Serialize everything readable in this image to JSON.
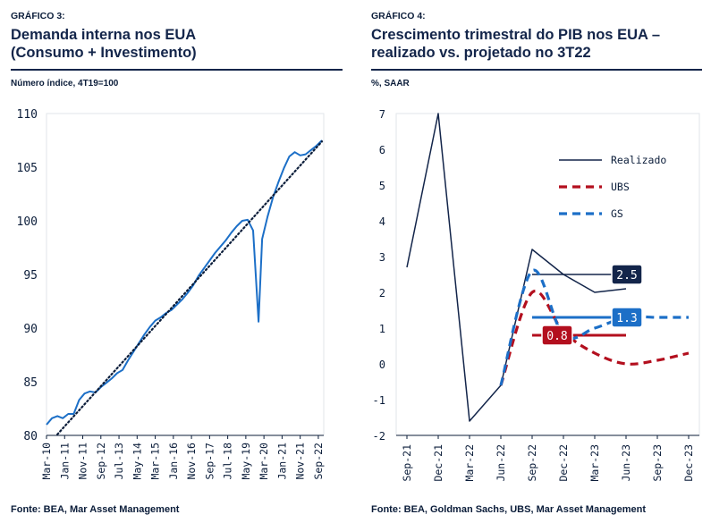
{
  "colors": {
    "navy": "#13254a",
    "blue": "#1c6fc7",
    "red": "#b30f1e",
    "text": "#0b1d3a",
    "grid": "#e1e4ea"
  },
  "panel1": {
    "kicker": "GRÁFICO 3:",
    "title_line1": "Demanda interna nos EUA",
    "title_line2": "(Consumo + Investimento)",
    "unit": "Número índice, 4T19=100",
    "source": "Fonte: BEA, Mar Asset Management"
  },
  "panel2": {
    "kicker": "GRÁFICO 4:",
    "title_line1": "Crescimento trimestral do PIB nos EUA –",
    "title_line2": "realizado vs. projetado no 3T22",
    "unit": "%, SAAR",
    "source": "Fonte: BEA, Goldman Sachs, UBS, Mar Asset Management"
  },
  "chart_data": [
    {
      "type": "line",
      "ylim": [
        80,
        110
      ],
      "yticks": [
        80,
        85,
        90,
        95,
        100,
        105,
        110
      ],
      "xlim": [
        0,
        153
      ],
      "xticks": [
        {
          "label": "Mar-10",
          "i": 0
        },
        {
          "label": "Jan-11",
          "i": 10
        },
        {
          "label": "Nov-11",
          "i": 20
        },
        {
          "label": "Sep-12",
          "i": 30
        },
        {
          "label": "Jul-13",
          "i": 40
        },
        {
          "label": "May-14",
          "i": 50
        },
        {
          "label": "Mar-15",
          "i": 60
        },
        {
          "label": "Jan-16",
          "i": 70
        },
        {
          "label": "Nov-16",
          "i": 80
        },
        {
          "label": "Sep-17",
          "i": 90
        },
        {
          "label": "Jul-18",
          "i": 100
        },
        {
          "label": "May-19",
          "i": 110
        },
        {
          "label": "Mar-20",
          "i": 120
        },
        {
          "label": "Jan-21",
          "i": 130
        },
        {
          "label": "Nov-21",
          "i": 140
        },
        {
          "label": "Sep-22",
          "i": 150
        }
      ],
      "series": [
        {
          "style": "solid",
          "color": "#1c6fc7",
          "points": [
            [
              0,
              81.0
            ],
            [
              3,
              81.6
            ],
            [
              6,
              81.8
            ],
            [
              9,
              81.6
            ],
            [
              12,
              82.0
            ],
            [
              15,
              82.0
            ],
            [
              18,
              83.3
            ],
            [
              21,
              83.9
            ],
            [
              24,
              84.1
            ],
            [
              27,
              84.0
            ],
            [
              30,
              84.5
            ],
            [
              33,
              84.9
            ],
            [
              36,
              85.3
            ],
            [
              39,
              85.8
            ],
            [
              42,
              86.1
            ],
            [
              45,
              87.0
            ],
            [
              48,
              87.8
            ],
            [
              51,
              88.6
            ],
            [
              54,
              89.4
            ],
            [
              57,
              90.1
            ],
            [
              60,
              90.7
            ],
            [
              63,
              91.0
            ],
            [
              66,
              91.4
            ],
            [
              69,
              91.7
            ],
            [
              72,
              92.2
            ],
            [
              75,
              92.7
            ],
            [
              78,
              93.3
            ],
            [
              81,
              94.0
            ],
            [
              84,
              94.9
            ],
            [
              87,
              95.6
            ],
            [
              90,
              96.3
            ],
            [
              93,
              97.0
            ],
            [
              96,
              97.6
            ],
            [
              99,
              98.2
            ],
            [
              102,
              98.9
            ],
            [
              105,
              99.5
            ],
            [
              108,
              100.0
            ],
            [
              111,
              100.1
            ],
            [
              114,
              99.1
            ],
            [
              117,
              90.6
            ],
            [
              119,
              98.3
            ],
            [
              122,
              100.4
            ],
            [
              125,
              102.2
            ],
            [
              128,
              103.6
            ],
            [
              131,
              104.9
            ],
            [
              134,
              106.0
            ],
            [
              137,
              106.4
            ],
            [
              140,
              106.1
            ],
            [
              143,
              106.2
            ],
            [
              146,
              106.6
            ],
            [
              149,
              107.0
            ],
            [
              152,
              107.5
            ]
          ]
        },
        {
          "style": "dotted",
          "color": "#0b1d3a",
          "points": [
            [
              6,
              80.1
            ],
            [
              152,
              107.4
            ]
          ]
        }
      ]
    },
    {
      "type": "line",
      "ylim": [
        -2,
        7
      ],
      "yticks": [
        -2,
        -1,
        0,
        1,
        2,
        3,
        4,
        5,
        6,
        7
      ],
      "categories": [
        "Sep-21",
        "Dec-21",
        "Mar-22",
        "Jun-22",
        "Sep-22",
        "Dec-22",
        "Mar-23",
        "Jun-23",
        "Sep-23",
        "Dec-23"
      ],
      "series": [
        {
          "name": "Realizado",
          "style": "solid",
          "color": "#13254a",
          "points": [
            [
              0,
              2.7
            ],
            [
              1,
              7.0
            ],
            [
              2,
              -1.6
            ],
            [
              3,
              -0.6
            ],
            [
              4,
              3.2
            ],
            [
              5,
              2.5
            ],
            [
              6,
              2.0
            ],
            [
              7,
              2.1
            ]
          ]
        },
        {
          "name": "UBS",
          "style": "dashed",
          "color": "#b30f1e",
          "points": [
            [
              3,
              -0.6
            ],
            [
              4,
              2.0
            ],
            [
              5,
              0.9
            ],
            [
              6,
              0.3
            ],
            [
              7,
              0.0
            ],
            [
              8,
              0.1
            ],
            [
              9,
              0.3
            ]
          ]
        },
        {
          "name": "GS",
          "style": "dashed",
          "color": "#1c6fc7",
          "points": [
            [
              3,
              -0.6
            ],
            [
              4,
              2.6
            ],
            [
              5,
              0.8
            ],
            [
              6,
              1.0
            ],
            [
              7,
              1.3
            ],
            [
              8,
              1.3
            ],
            [
              9,
              1.3
            ]
          ]
        }
      ],
      "annotations": [
        {
          "label": "2.5",
          "value": 2.5,
          "color": "#13254a"
        },
        {
          "label": "1.3",
          "value": 1.3,
          "color": "#1c6fc7"
        },
        {
          "label": "0.8",
          "value": 0.8,
          "color": "#b30f1e"
        }
      ]
    }
  ]
}
